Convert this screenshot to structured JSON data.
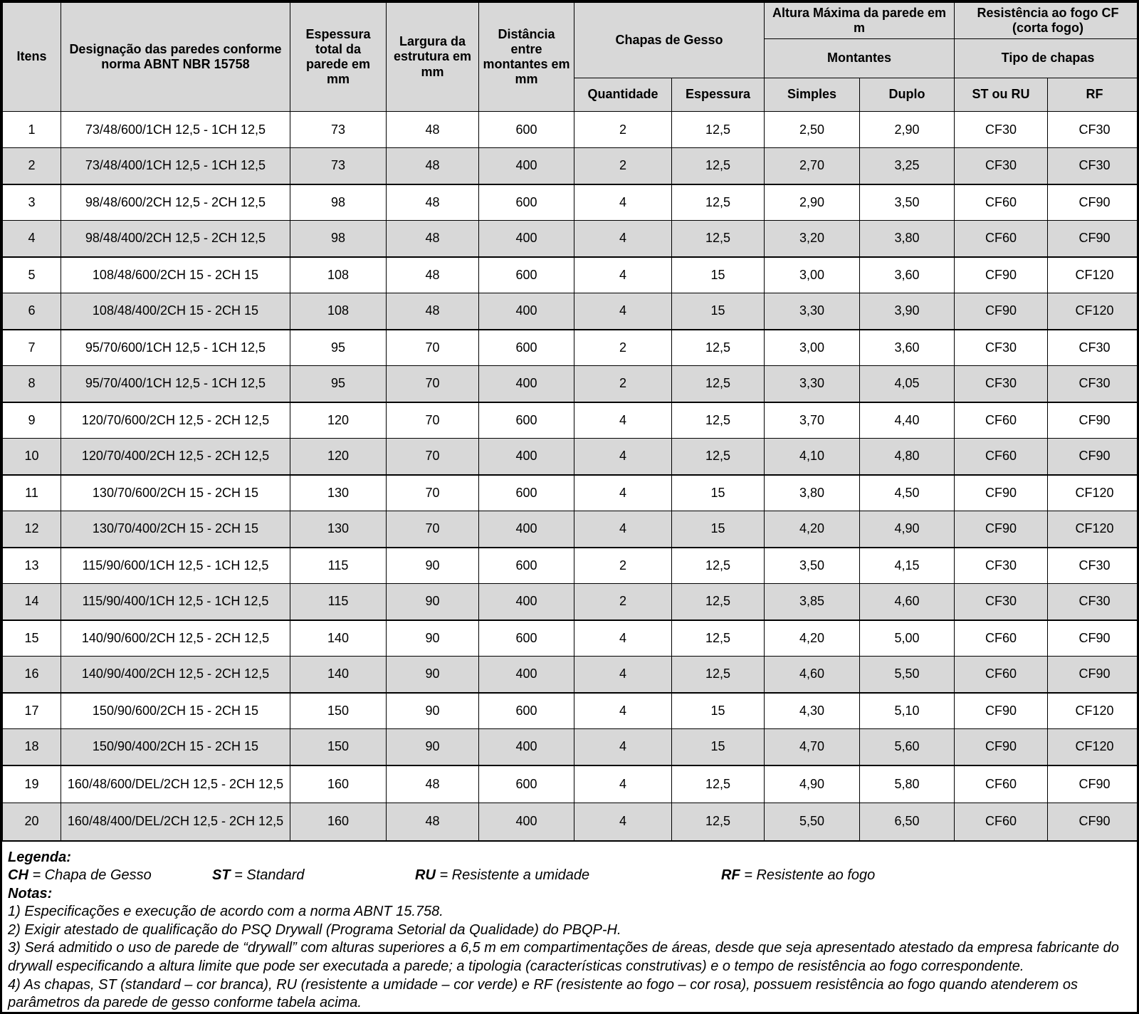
{
  "table": {
    "header": {
      "itens": "Itens",
      "designacao": "Designação das paredes conforme norma ABNT NBR 15758",
      "espessura_total": "Espessura total da parede em mm",
      "largura_estrutura": "Largura da estrutura em mm",
      "distancia_montantes": "Distância entre montantes em mm",
      "chapas_de_gesso": "Chapas de Gesso",
      "altura_maxima": "Altura Máxima da parede em m",
      "resistencia_fogo": "Resistência ao fogo CF (corta fogo)",
      "montantes": "Montantes",
      "tipo_de_chapas": "Tipo de chapas",
      "quantidade": "Quantidade",
      "espessura": "Espessura",
      "simples": "Simples",
      "duplo": "Duplo",
      "st_ou_ru": "ST ou RU",
      "rf": "RF"
    },
    "rows": [
      {
        "item": "1",
        "designacao": "73/48/600/1CH 12,5 - 1CH 12,5",
        "espessura_total": "73",
        "largura_estrutura": "48",
        "distancia_montantes": "600",
        "quantidade": "2",
        "espessura": "12,5",
        "simples": "2,50",
        "duplo": "2,90",
        "st_ou_ru": "CF30",
        "rf": "CF30"
      },
      {
        "item": "2",
        "designacao": "73/48/400/1CH 12,5 - 1CH 12,5",
        "espessura_total": "73",
        "largura_estrutura": "48",
        "distancia_montantes": "400",
        "quantidade": "2",
        "espessura": "12,5",
        "simples": "2,70",
        "duplo": "3,25",
        "st_ou_ru": "CF30",
        "rf": "CF30"
      },
      {
        "item": "3",
        "designacao": "98/48/600/2CH 12,5 - 2CH 12,5",
        "espessura_total": "98",
        "largura_estrutura": "48",
        "distancia_montantes": "600",
        "quantidade": "4",
        "espessura": "12,5",
        "simples": "2,90",
        "duplo": "3,50",
        "st_ou_ru": "CF60",
        "rf": "CF90"
      },
      {
        "item": "4",
        "designacao": "98/48/400/2CH 12,5 - 2CH 12,5",
        "espessura_total": "98",
        "largura_estrutura": "48",
        "distancia_montantes": "400",
        "quantidade": "4",
        "espessura": "12,5",
        "simples": "3,20",
        "duplo": "3,80",
        "st_ou_ru": "CF60",
        "rf": "CF90"
      },
      {
        "item": "5",
        "designacao": "108/48/600/2CH 15 - 2CH 15",
        "espessura_total": "108",
        "largura_estrutura": "48",
        "distancia_montantes": "600",
        "quantidade": "4",
        "espessura": "15",
        "simples": "3,00",
        "duplo": "3,60",
        "st_ou_ru": "CF90",
        "rf": "CF120"
      },
      {
        "item": "6",
        "designacao": "108/48/400/2CH 15 - 2CH 15",
        "espessura_total": "108",
        "largura_estrutura": "48",
        "distancia_montantes": "400",
        "quantidade": "4",
        "espessura": "15",
        "simples": "3,30",
        "duplo": "3,90",
        "st_ou_ru": "CF90",
        "rf": "CF120"
      },
      {
        "item": "7",
        "designacao": "95/70/600/1CH 12,5 - 1CH 12,5",
        "espessura_total": "95",
        "largura_estrutura": "70",
        "distancia_montantes": "600",
        "quantidade": "2",
        "espessura": "12,5",
        "simples": "3,00",
        "duplo": "3,60",
        "st_ou_ru": "CF30",
        "rf": "CF30"
      },
      {
        "item": "8",
        "designacao": "95/70/400/1CH 12,5 - 1CH 12,5",
        "espessura_total": "95",
        "largura_estrutura": "70",
        "distancia_montantes": "400",
        "quantidade": "2",
        "espessura": "12,5",
        "simples": "3,30",
        "duplo": "4,05",
        "st_ou_ru": "CF30",
        "rf": "CF30"
      },
      {
        "item": "9",
        "designacao": "120/70/600/2CH 12,5 - 2CH 12,5",
        "espessura_total": "120",
        "largura_estrutura": "70",
        "distancia_montantes": "600",
        "quantidade": "4",
        "espessura": "12,5",
        "simples": "3,70",
        "duplo": "4,40",
        "st_ou_ru": "CF60",
        "rf": "CF90"
      },
      {
        "item": "10",
        "designacao": "120/70/400/2CH 12,5 - 2CH 12,5",
        "espessura_total": "120",
        "largura_estrutura": "70",
        "distancia_montantes": "400",
        "quantidade": "4",
        "espessura": "12,5",
        "simples": "4,10",
        "duplo": "4,80",
        "st_ou_ru": "CF60",
        "rf": "CF90"
      },
      {
        "item": "11",
        "designacao": "130/70/600/2CH 15 - 2CH 15",
        "espessura_total": "130",
        "largura_estrutura": "70",
        "distancia_montantes": "600",
        "quantidade": "4",
        "espessura": "15",
        "simples": "3,80",
        "duplo": "4,50",
        "st_ou_ru": "CF90",
        "rf": "CF120"
      },
      {
        "item": "12",
        "designacao": "130/70/400/2CH 15 - 2CH 15",
        "espessura_total": "130",
        "largura_estrutura": "70",
        "distancia_montantes": "400",
        "quantidade": "4",
        "espessura": "15",
        "simples": "4,20",
        "duplo": "4,90",
        "st_ou_ru": "CF90",
        "rf": "CF120"
      },
      {
        "item": "13",
        "designacao": "115/90/600/1CH 12,5 - 1CH 12,5",
        "espessura_total": "115",
        "largura_estrutura": "90",
        "distancia_montantes": "600",
        "quantidade": "2",
        "espessura": "12,5",
        "simples": "3,50",
        "duplo": "4,15",
        "st_ou_ru": "CF30",
        "rf": "CF30"
      },
      {
        "item": "14",
        "designacao": "115/90/400/1CH 12,5 - 1CH 12,5",
        "espessura_total": "115",
        "largura_estrutura": "90",
        "distancia_montantes": "400",
        "quantidade": "2",
        "espessura": "12,5",
        "simples": "3,85",
        "duplo": "4,60",
        "st_ou_ru": "CF30",
        "rf": "CF30"
      },
      {
        "item": "15",
        "designacao": "140/90/600/2CH 12,5 - 2CH 12,5",
        "espessura_total": "140",
        "largura_estrutura": "90",
        "distancia_montantes": "600",
        "quantidade": "4",
        "espessura": "12,5",
        "simples": "4,20",
        "duplo": "5,00",
        "st_ou_ru": "CF60",
        "rf": "CF90"
      },
      {
        "item": "16",
        "designacao": "140/90/400/2CH 12,5 - 2CH 12,5",
        "espessura_total": "140",
        "largura_estrutura": "90",
        "distancia_montantes": "400",
        "quantidade": "4",
        "espessura": "12,5",
        "simples": "4,60",
        "duplo": "5,50",
        "st_ou_ru": "CF60",
        "rf": "CF90"
      },
      {
        "item": "17",
        "designacao": "150/90/600/2CH 15 - 2CH 15",
        "espessura_total": "150",
        "largura_estrutura": "90",
        "distancia_montantes": "600",
        "quantidade": "4",
        "espessura": "15",
        "simples": "4,30",
        "duplo": "5,10",
        "st_ou_ru": "CF90",
        "rf": "CF120"
      },
      {
        "item": "18",
        "designacao": "150/90/400/2CH 15 - 2CH 15",
        "espessura_total": "150",
        "largura_estrutura": "90",
        "distancia_montantes": "400",
        "quantidade": "4",
        "espessura": "15",
        "simples": "4,70",
        "duplo": "5,60",
        "st_ou_ru": "CF90",
        "rf": "CF120"
      },
      {
        "item": "19",
        "designacao": "160/48/600/DEL/2CH 12,5 - 2CH 12,5",
        "espessura_total": "160",
        "largura_estrutura": "48",
        "distancia_montantes": "600",
        "quantidade": "4",
        "espessura": "12,5",
        "simples": "4,90",
        "duplo": "5,80",
        "st_ou_ru": "CF60",
        "rf": "CF90"
      },
      {
        "item": "20",
        "designacao": "160/48/400/DEL/2CH 12,5 - 2CH 12,5",
        "espessura_total": "160",
        "largura_estrutura": "48",
        "distancia_montantes": "400",
        "quantidade": "4",
        "espessura": "12,5",
        "simples": "5,50",
        "duplo": "6,50",
        "st_ou_ru": "CF60",
        "rf": "CF90"
      }
    ]
  },
  "footer": {
    "legend_title": "Legenda:",
    "legend": [
      {
        "term": "CH",
        "definition": " = Chapa de Gesso"
      },
      {
        "term": "ST",
        "definition": " = Standard"
      },
      {
        "term": "RU",
        "definition": " = Resistente a umidade"
      },
      {
        "term": "RF",
        "definition": " = Resistente ao fogo"
      }
    ],
    "notas_title": "Notas:",
    "notes": [
      "1) Especificações e execução de acordo com a norma ABNT 15.758.",
      "2) Exigir atestado de qualificação do PSQ Drywall (Programa Setorial da Qualidade) do PBQP-H.",
      "3) Será admitido o uso de parede de “drywall” com alturas superiores a 6,5 m em compartimentações de áreas, desde que seja apresentado atestado da empresa fabricante do drywall especificando a altura limite que pode ser executada a parede; a tipologia (características construtivas) e o tempo de resistência ao fogo correspondente.",
      "4) As chapas, ST (standard – cor branca), RU (resistente a umidade – cor verde) e RF (resistente ao fogo – cor rosa), possuem resistência ao fogo quando atenderem os parâmetros da parede de gesso conforme tabela acima."
    ]
  }
}
